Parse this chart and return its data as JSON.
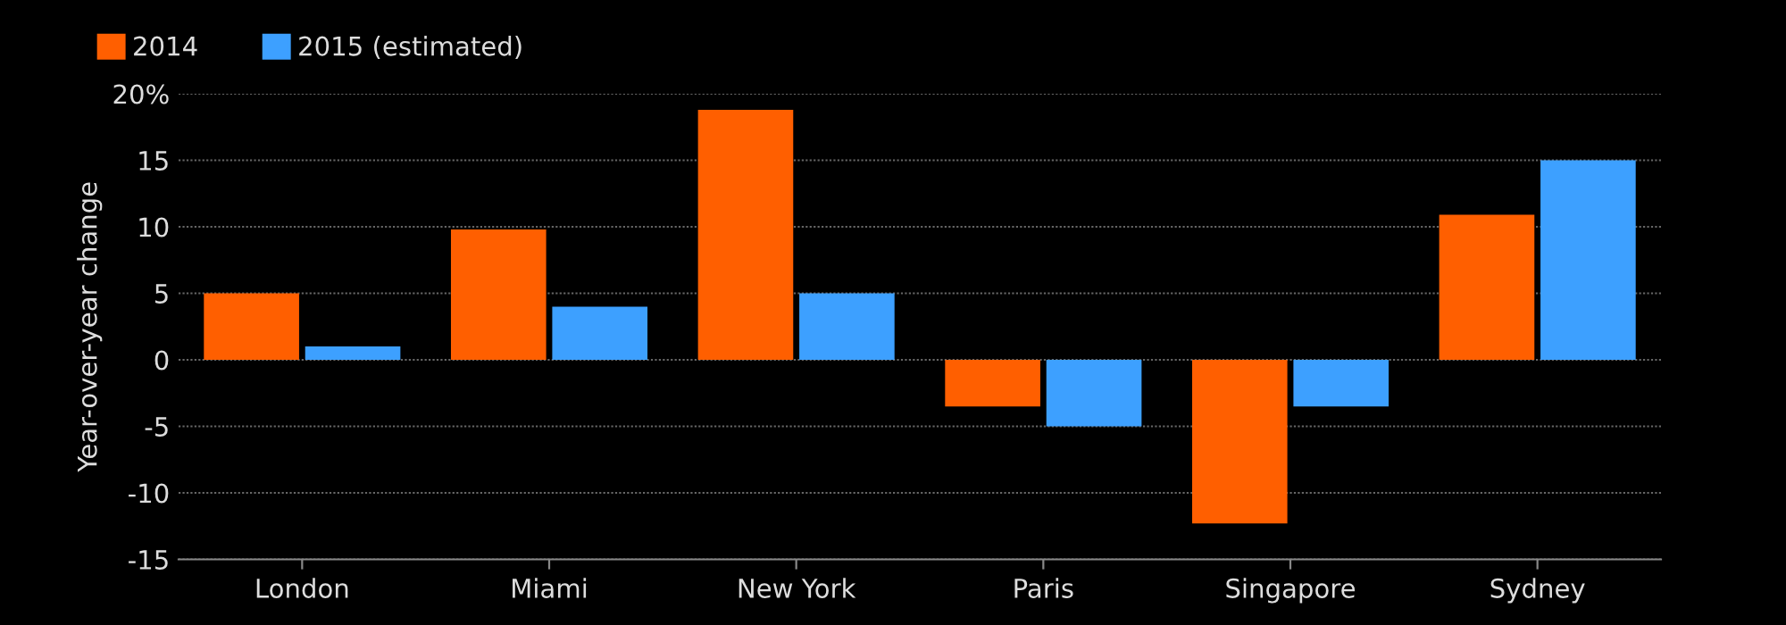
{
  "chart_data": {
    "type": "bar",
    "ylabel": "Year-over-year change",
    "categories": [
      "London",
      "Miami",
      "New York",
      "Paris",
      "Singapore",
      "Sydney"
    ],
    "series": [
      {
        "name": "2014",
        "color": "#ff5f00",
        "values": [
          5,
          9.8,
          18.8,
          -3.5,
          -12.3,
          10.9
        ]
      },
      {
        "name": "2015 (estimated)",
        "color": "#3da0ff",
        "values": [
          1,
          4,
          5,
          -5,
          -3.5,
          15
        ]
      }
    ],
    "ylim": [
      -15,
      20
    ],
    "yticks": [
      -15,
      -10,
      -5,
      0,
      5,
      10,
      15,
      {
        "value": 20,
        "label": "20%"
      }
    ],
    "grid": "y",
    "legend": "top left"
  }
}
